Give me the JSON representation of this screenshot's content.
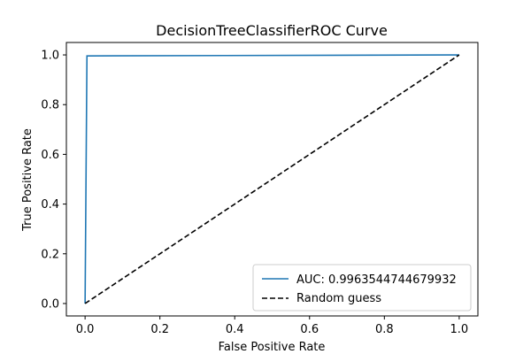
{
  "chart_data": {
    "type": "line",
    "title": "DecisionTreeClassifierROC Curve",
    "xlabel": "False Positive Rate",
    "ylabel": "True Positive Rate",
    "xlim": [
      -0.05,
      1.05
    ],
    "ylim": [
      -0.05,
      1.05
    ],
    "xticks": [
      0.0,
      0.2,
      0.4,
      0.6,
      0.8,
      1.0
    ],
    "yticks": [
      0.0,
      0.2,
      0.4,
      0.6,
      0.8,
      1.0
    ],
    "xtick_labels": [
      "0.0",
      "0.2",
      "0.4",
      "0.6",
      "0.8",
      "1.0"
    ],
    "ytick_labels": [
      "0.0",
      "0.2",
      "0.4",
      "0.6",
      "0.8",
      "1.0"
    ],
    "grid": false,
    "legend_position": "lower-right",
    "series": [
      {
        "name": "AUC: 0.9963544744679932",
        "color": "#1f77b4",
        "style": "solid",
        "x": [
          0.0,
          0.005,
          1.0
        ],
        "y": [
          0.0,
          0.996,
          1.0
        ]
      },
      {
        "name": "Random guess",
        "color": "#000000",
        "style": "dashed",
        "x": [
          0.0,
          1.0
        ],
        "y": [
          0.0,
          1.0
        ]
      }
    ]
  }
}
